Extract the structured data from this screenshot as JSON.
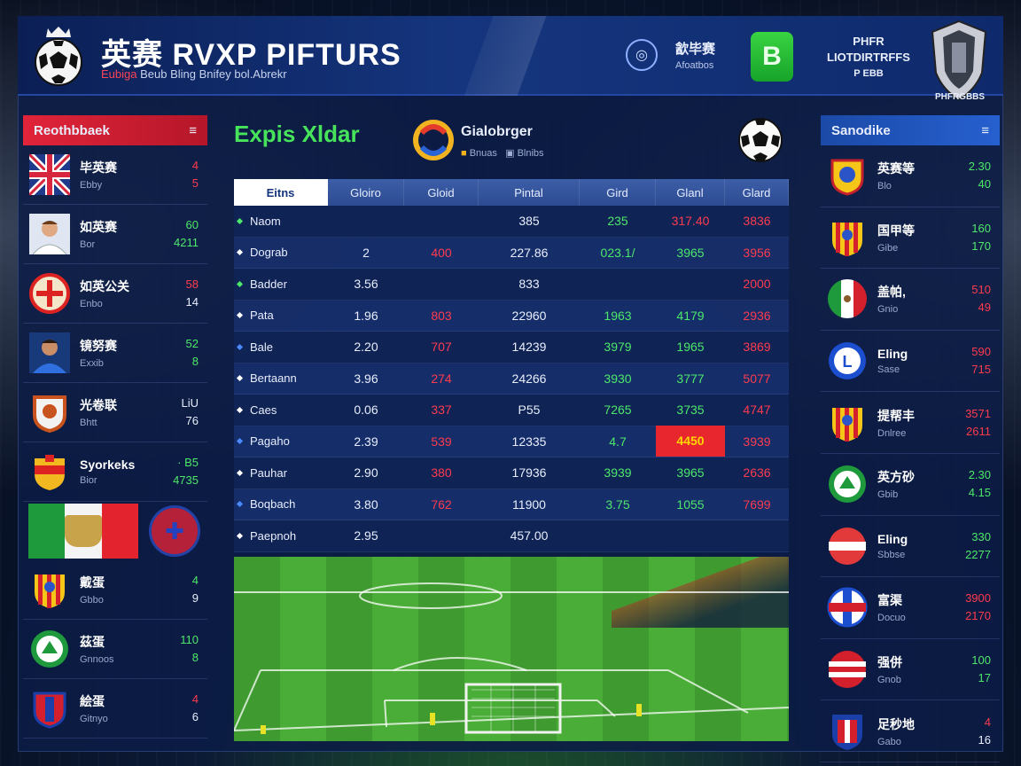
{
  "header": {
    "title": "英赛 RVXP PIFTURS",
    "subtitle_red": "Eubiga",
    "subtitle": "Beub Bling Bnifey bol.Abrekr",
    "icon_label": "㱃毕赛",
    "icon_sub": "Afoatbos",
    "badge_glyph": "B",
    "right_line1": "PHFR",
    "right_line2": "LIOTDIRTRFFS",
    "right_line3": "P EBB",
    "shield_caption": "PHFRGBBS"
  },
  "left_panel": {
    "title": "Reothbbaek",
    "rows": [
      {
        "name": "毕英赛",
        "sub": "Ebby",
        "v1": "4",
        "v2": "5",
        "c1": "red",
        "c2": "red",
        "badge": "flag-uk"
      },
      {
        "name": "如英赛",
        "sub": "Bor",
        "v1": "60",
        "v2": "4211",
        "c1": "green",
        "c2": "green",
        "badge": "player-1"
      },
      {
        "name": "如英公关",
        "sub": "Enbo",
        "v1": "58",
        "v2": "14",
        "c1": "red",
        "c2": "white",
        "badge": "crest-red"
      },
      {
        "name": "镜努赛",
        "sub": "Exxib",
        "v1": "52",
        "v2": "8",
        "c1": "green",
        "c2": "green",
        "badge": "player-2"
      },
      {
        "name": "光卷联",
        "sub": "Bhtt",
        "v1": "LiU",
        "v2": "76",
        "c1": "white",
        "c2": "white",
        "badge": "crest-orange"
      },
      {
        "name": "Syorkeks",
        "sub": "Bior",
        "v1": "· B5",
        "v2": "4735",
        "c1": "green",
        "c2": "green",
        "badge": "crest-spain"
      }
    ],
    "rows2": [
      {
        "name": "戴蛋",
        "sub": "Gbbo",
        "v1": "4",
        "v2": "9",
        "c1": "green",
        "c2": "white",
        "badge": "crest-stripes"
      },
      {
        "name": "茲蛋",
        "sub": "Gnnoos",
        "v1": "110",
        "v2": "8",
        "c1": "green",
        "c2": "green",
        "badge": "crest-green"
      },
      {
        "name": "絵蛋",
        "sub": "Gitnyo",
        "v1": "4",
        "v2": "6",
        "c1": "red",
        "c2": "white",
        "badge": "crest-shield"
      }
    ]
  },
  "right_panel": {
    "title": "Sanodike",
    "rows": [
      {
        "name": "英赛等",
        "sub": "Blo",
        "v1": "2.30",
        "v2": "40",
        "c1": "green",
        "c2": "green",
        "badge": "crest-yellow"
      },
      {
        "name": "国甲等",
        "sub": "Gibe",
        "v1": "160",
        "v2": "170",
        "c1": "green",
        "c2": "green",
        "badge": "crest-stripes"
      },
      {
        "name": "盖帕,",
        "sub": "Gnio",
        "v1": "510",
        "v2": "49",
        "c1": "red",
        "c2": "red",
        "badge": "flag-mx"
      },
      {
        "name": "Eling",
        "sub": "Sase",
        "v1": "590",
        "v2": "715",
        "c1": "red",
        "c2": "red",
        "badge": "crest-blue"
      },
      {
        "name": "提帮丰",
        "sub": "Dnlree",
        "v1": "3571",
        "v2": "2611",
        "c1": "red",
        "c2": "red",
        "badge": "crest-stripes"
      },
      {
        "name": "英方砂",
        "sub": "Gbib",
        "v1": "2.30",
        "v2": "4.15",
        "c1": "green",
        "c2": "green",
        "badge": "crest-green"
      },
      {
        "name": "Eling",
        "sub": "Sbbse",
        "v1": "330",
        "v2": "2277",
        "c1": "green",
        "c2": "green",
        "badge": "crest-redwhite"
      },
      {
        "name": "富渠",
        "sub": "Docuo",
        "v1": "3900",
        "v2": "2170",
        "c1": "red",
        "c2": "red",
        "badge": "crest-bluewhite"
      },
      {
        "name": "强併",
        "sub": "Gnob",
        "v1": "100",
        "v2": "17",
        "c1": "green",
        "c2": "green",
        "badge": "crest-redstripe"
      },
      {
        "name": "足秒地",
        "sub": "Gabo",
        "v1": "4",
        "v2": "16",
        "c1": "red",
        "c2": "white",
        "badge": "crest-tp"
      }
    ]
  },
  "center": {
    "title": "Expis Xldar",
    "brand_name": "Gialobrger",
    "brand_sub1": "Bnuas",
    "brand_sub2": "Blnibs",
    "columns": [
      "Eitns",
      "Gloiro",
      "Gloid",
      "Pintal",
      "Gird",
      "Glanl",
      "Glard"
    ],
    "rows": [
      {
        "name": "Naom",
        "bullet": "green",
        "c1": "",
        "c2": "",
        "c3": "385",
        "c4": "235",
        "c5": "317.40",
        "c6": "3836",
        "col2": "red",
        "col3": "white",
        "col4": "green",
        "col5": "red",
        "col6": "red"
      },
      {
        "name": "Dograb",
        "bullet": "white",
        "c1": "2",
        "c2": "400",
        "c3": "227.86",
        "c4": "023.1/",
        "c5": "3965",
        "c6": "3956",
        "col2": "red",
        "col3": "white",
        "col4": "green",
        "col5": "green",
        "col6": "red"
      },
      {
        "name": "Badder",
        "bullet": "green",
        "c1": "3.56",
        "c2": "",
        "c3": "833",
        "c4": "",
        "c5": "",
        "c6": "2000",
        "col2": "red",
        "col3": "white",
        "col4": "green",
        "col5": "green",
        "col6": "red"
      },
      {
        "name": "Pata",
        "bullet": "white",
        "c1": "1.96",
        "c2": "803",
        "c3": "22960",
        "c4": "1963",
        "c5": "4179",
        "c6": "2936",
        "col2": "red",
        "col3": "white",
        "col4": "green",
        "col5": "green",
        "col6": "red"
      },
      {
        "name": "Bale",
        "bullet": "blue",
        "c1": "2.20",
        "c2": "707",
        "c3": "14239",
        "c4": "3979",
        "c5": "1965",
        "c6": "3869",
        "col2": "red",
        "col3": "white",
        "col4": "green",
        "col5": "green",
        "col6": "red"
      },
      {
        "name": "Bertaann",
        "bullet": "white",
        "c1": "3.96",
        "c2": "274",
        "c3": "24266",
        "c4": "3930",
        "c5": "3777",
        "c6": "5077",
        "col2": "red",
        "col3": "white",
        "col4": "green",
        "col5": "green",
        "col6": "red"
      },
      {
        "name": "Caes",
        "bullet": "white",
        "c1": "0.06",
        "c2": "337",
        "c3": "P55",
        "c4": "7265",
        "c5": "3735",
        "c6": "4747",
        "col2": "red",
        "col3": "white",
        "col4": "green",
        "col5": "green",
        "col6": "red"
      },
      {
        "name": "Pagaho",
        "bullet": "blue",
        "c1": "2.39",
        "c2": "539",
        "c3": "12335",
        "c4": "4.7",
        "c5": "4450",
        "c6": "3939",
        "col2": "red",
        "col3": "white",
        "col4": "green",
        "col5": "highlight",
        "col6": "red"
      },
      {
        "name": "Pauhar",
        "bullet": "white",
        "c1": "2.90",
        "c2": "380",
        "c3": "17936",
        "c4": "3939",
        "c5": "3965",
        "c6": "2636",
        "col2": "red",
        "col3": "white",
        "col4": "green",
        "col5": "green",
        "col6": "red"
      },
      {
        "name": "Boqbach",
        "bullet": "blue",
        "c1": "3.80",
        "c2": "762",
        "c3": "11900",
        "c4": "3.75",
        "c5": "1055",
        "c6": "7699",
        "col2": "red",
        "col3": "white",
        "col4": "green",
        "col5": "green",
        "col6": "red"
      },
      {
        "name": "Paepnoh",
        "bullet": "white",
        "c1": "2.95",
        "c2": "",
        "c3": "457.00",
        "c4": "",
        "c5": "",
        "c6": "",
        "col2": "red",
        "col3": "white",
        "col4": "green",
        "col5": "green",
        "col6": "red"
      }
    ]
  },
  "colors": {
    "accent_green": "#47e35a",
    "accent_red": "#e0243a",
    "panel_blue": "#15357e",
    "highlight": "#e8262e"
  }
}
